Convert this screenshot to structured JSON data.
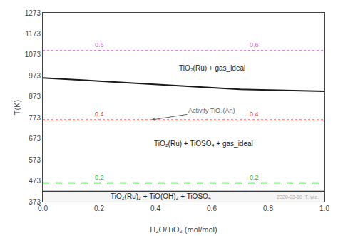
{
  "chart_data": {
    "type": "line",
    "xlabel": "H₂O/TiO₂ (mol/mol)",
    "ylabel": "T(K)",
    "xlim": [
      0,
      1.0
    ],
    "ylim": [
      373,
      1273
    ],
    "xticks": [
      {
        "value": 0,
        "label": "0.0"
      },
      0.2,
      0.4,
      0.6,
      0.8,
      {
        "value": 1.0,
        "label": "1.0"
      }
    ],
    "yticks": [
      373,
      473,
      573,
      673,
      773,
      873,
      973,
      1073,
      1173,
      1273
    ],
    "grid": false,
    "series": [
      {
        "x": [
          0.0,
          0.05,
          0.1,
          0.15,
          0.2,
          0.25,
          0.3,
          0.35,
          0.4,
          0.45,
          0.5,
          0.55,
          0.6,
          0.65,
          0.7,
          0.75,
          0.8,
          0.85,
          0.9,
          0.95,
          1.0
        ],
        "values": [
          963,
          960,
          956,
          952,
          948,
          944,
          940,
          936,
          932,
          928,
          924,
          920,
          916,
          912,
          909,
          907,
          905,
          903,
          901,
          900,
          899
        ],
        "color": "#1a1a1a",
        "line_style": "solid"
      }
    ],
    "bands": [
      {
        "y": [
          373,
          423
        ],
        "color": "#f5f5f5",
        "border_color": "black"
      }
    ],
    "hlines": [
      {
        "y": 1093,
        "color": "#cc66cc",
        "line_style": "dotted",
        "labels": [
          {
            "x": 0.2,
            "text": "0.6"
          },
          {
            "x": 0.75,
            "text": "0.6"
          }
        ]
      },
      {
        "y": 763,
        "color": "#e03030",
        "line_style": "dotted",
        "labels": [
          {
            "x": 0.2,
            "text": "0.4"
          },
          {
            "x": 0.75,
            "text": "0.4"
          }
        ]
      },
      {
        "y": 463,
        "color": "#33bb33",
        "line_style": "dashed",
        "labels": [
          {
            "x": 0.2,
            "text": "0.2"
          },
          {
            "x": 0.75,
            "text": "0.2"
          }
        ]
      }
    ],
    "annotations": [
      {
        "text": "TiO₂(Ru) + gas_ideal",
        "x": 0.6,
        "y": 1010
      },
      {
        "text": "TiO₂(Ru) + TiOSO₄ + gas_ideal",
        "x": 0.57,
        "y": 650
      },
      {
        "text": "TiO₂(Ru)₂ + TiO(OH)₂ + TiOSO₄",
        "x": 0.42,
        "y": 398
      },
      {
        "text": "Activity TiO₂(An)",
        "x": 0.6,
        "y": 808,
        "arrow_x": 0.385,
        "arrow_y": 763,
        "color": "#666666"
      },
      {
        "text": "2020-03-10  T. w.e.",
        "x": 0.985,
        "y": 376,
        "color": "#aaaaaa",
        "anchor": "right"
      }
    ]
  }
}
